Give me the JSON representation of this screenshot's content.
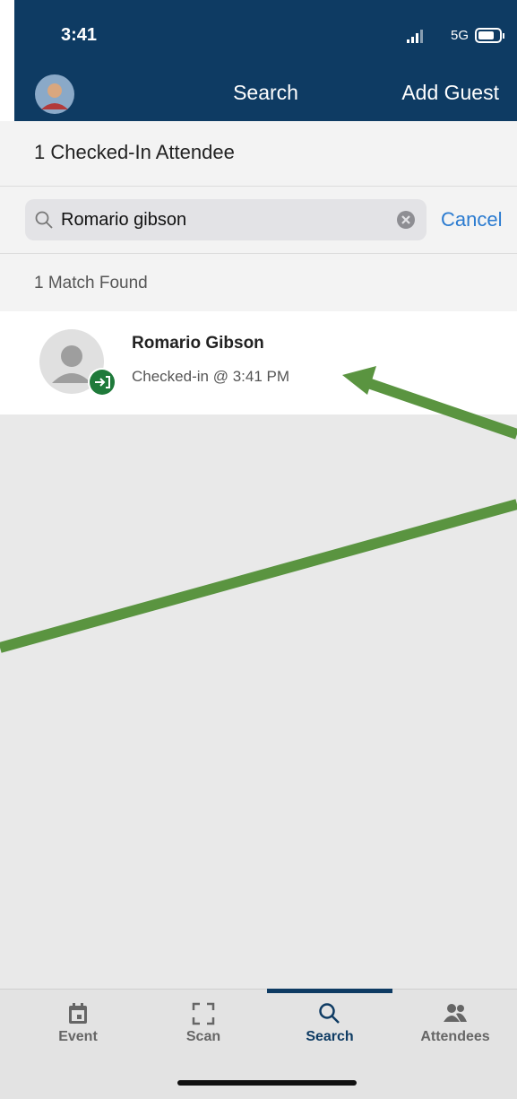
{
  "status_bar": {
    "time": "3:41",
    "network": "5G"
  },
  "nav_bar": {
    "title": "Search",
    "action": "Add Guest"
  },
  "section_header": "1 Checked-In Attendee",
  "search": {
    "query": "Romario gibson",
    "cancel": "Cancel"
  },
  "results": {
    "summary": "1 Match Found",
    "items": [
      {
        "name": "Romario Gibson",
        "status": "Checked-in @ 3:41 PM"
      }
    ]
  },
  "tab_bar": {
    "tabs": [
      {
        "label": "Event"
      },
      {
        "label": "Scan"
      },
      {
        "label": "Search"
      },
      {
        "label": "Attendees"
      }
    ]
  }
}
